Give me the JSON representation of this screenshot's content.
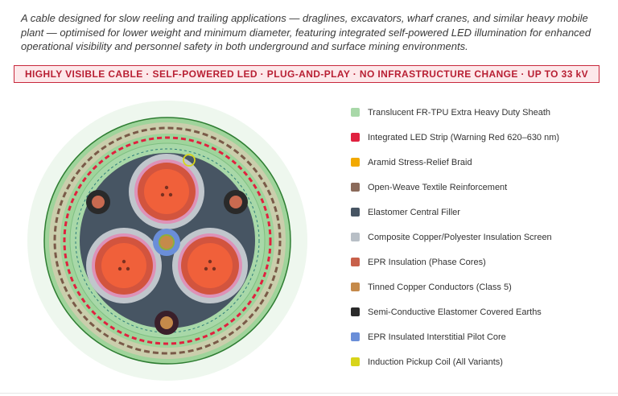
{
  "intro": "A cable designed for slow reeling and trailing applications — draglines, excavators, wharf cranes, and similar heavy mobile plant — optimised for lower weight and minimum diameter, featuring integrated self-powered LED illumination for enhanced operational visibility and personnel safety in both underground and surface mining environments.",
  "banner": "HIGHLY VISIBLE CABLE · SELF-POWERED LED · PLUG-AND-PLAY · NO INFRASTRUCTURE CHANGE · UP TO 33 kV",
  "legend": [
    {
      "label": "Translucent FR-TPU Extra Heavy Duty Sheath",
      "color": "#a8d8a8"
    },
    {
      "label": "Integrated LED Strip (Warning Red 620–630 nm)",
      "color": "#e0213f"
    },
    {
      "label": "Aramid Stress-Relief Braid",
      "color": "#f2a900"
    },
    {
      "label": "Open-Weave Textile Reinforcement",
      "color": "#8b6a5a"
    },
    {
      "label": "Elastomer Central Filler",
      "color": "#475563"
    },
    {
      "label": "Composite Copper/Polyester Insulation Screen",
      "color": "#b8bfc6"
    },
    {
      "label": "EPR Insulation (Phase Cores)",
      "color": "#c8604a"
    },
    {
      "label": "Tinned Copper Conductors (Class 5)",
      "color": "#c58a4a"
    },
    {
      "label": "Semi-Conductive Elastomer Covered Earths",
      "color": "#2a2a2a"
    },
    {
      "label": "EPR Insulated Interstitial Pilot Core",
      "color": "#6a8ed8"
    },
    {
      "label": "Induction Pickup Coil (All Variants)",
      "color": "#d8d41a"
    }
  ]
}
